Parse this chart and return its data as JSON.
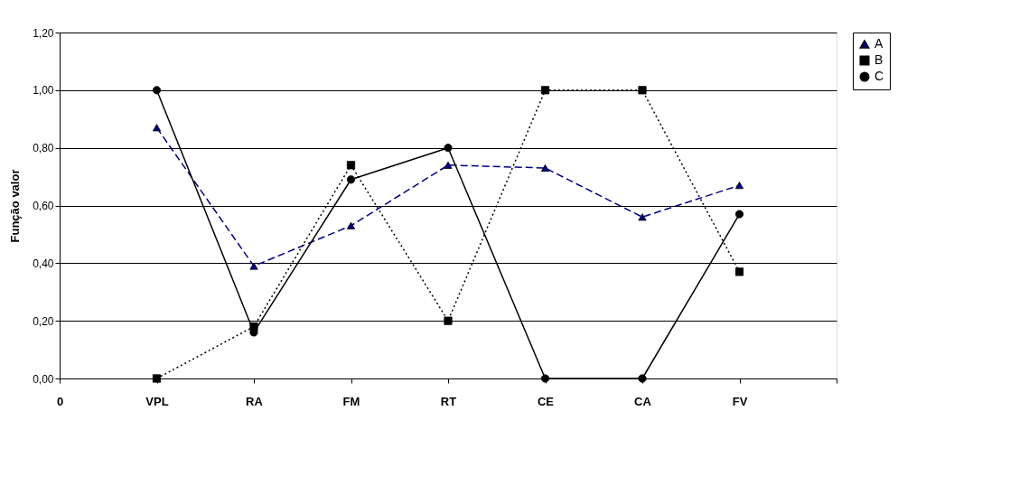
{
  "chart_data": {
    "type": "line",
    "ylabel": "Função valor",
    "categories": [
      "0",
      "VPL",
      "RA",
      "FM",
      "RT",
      "CE",
      "CA",
      "FV",
      null
    ],
    "ylim": [
      0,
      1.2
    ],
    "yticks": [
      {
        "value": 0,
        "label": "0,00"
      },
      {
        "value": 0.2,
        "label": "0,20"
      },
      {
        "value": 0.4,
        "label": "0,40"
      },
      {
        "value": 0.6,
        "label": "0,60"
      },
      {
        "value": 0.8,
        "label": "0,80"
      },
      {
        "value": 1.0,
        "label": "1,00"
      },
      {
        "value": 1.2,
        "label": "1,20"
      }
    ],
    "grid": "y",
    "legend": "right",
    "series": [
      {
        "name": "A",
        "color": "#000080",
        "marker": "triangle",
        "line_style": "dashed",
        "values": [
          null,
          0.87,
          0.39,
          0.53,
          0.74,
          0.73,
          0.56,
          0.67,
          null
        ]
      },
      {
        "name": "B",
        "color": "#000000",
        "marker": "square",
        "line_style": "dotted",
        "values": [
          null,
          0.0,
          0.18,
          0.74,
          0.2,
          1.0,
          1.0,
          0.37,
          null
        ]
      },
      {
        "name": "C",
        "color": "#000000",
        "marker": "circle",
        "line_style": "solid",
        "values": [
          null,
          1.0,
          0.16,
          0.69,
          0.8,
          0.0,
          0.0,
          0.57,
          null
        ]
      }
    ]
  }
}
